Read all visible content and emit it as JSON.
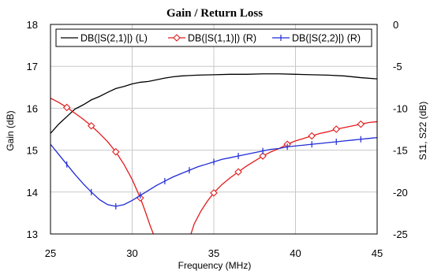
{
  "chart_data": {
    "type": "line",
    "title": "Gain / Return Loss",
    "xlabel": "Frequency (MHz)",
    "ylabel_left": "Gain (dB)",
    "ylabel_right": "S11, S22 (dB)",
    "xlim": [
      25,
      45
    ],
    "ylim_left": [
      13,
      18
    ],
    "ylim_right": [
      -25,
      0
    ],
    "x_ticks": [
      "25",
      "30",
      "35",
      "40",
      "45"
    ],
    "y_ticks_left": [
      "13",
      "14",
      "15",
      "16",
      "17",
      "18"
    ],
    "y_ticks_right": [
      "-25",
      "-20",
      "-15",
      "-10",
      "-5",
      "0"
    ],
    "grid": true,
    "legend_position": "top",
    "series": [
      {
        "name": "DB(|S(2,1)|) (L)",
        "axis": "left",
        "color": "#000000",
        "marker": "none",
        "x": [
          25,
          25.5,
          26,
          26.5,
          27,
          27.5,
          28,
          28.5,
          29,
          29.5,
          30,
          30.5,
          31,
          31.5,
          32,
          32.5,
          33,
          33.5,
          34,
          35,
          36,
          37,
          38,
          39,
          40,
          41,
          42,
          43,
          44,
          45
        ],
        "y": [
          15.4,
          15.62,
          15.8,
          15.98,
          16.08,
          16.2,
          16.28,
          16.38,
          16.47,
          16.52,
          16.58,
          16.62,
          16.64,
          16.68,
          16.72,
          16.75,
          16.77,
          16.78,
          16.79,
          16.8,
          16.81,
          16.81,
          16.82,
          16.82,
          16.81,
          16.8,
          16.79,
          16.77,
          16.73,
          16.7
        ]
      },
      {
        "name": "DB(|S(1,1)|) (R)",
        "axis": "right",
        "color": "#e31a1c",
        "marker": "diamond",
        "marker_x": [
          26,
          27.5,
          29,
          30.5,
          35,
          36.5,
          38,
          39.5,
          41,
          42.5,
          44
        ],
        "x": [
          25,
          25.5,
          26,
          26.5,
          27,
          27.5,
          28,
          28.5,
          29,
          29.5,
          30,
          30.5,
          30.8,
          31.1,
          31.3,
          33.6,
          33.8,
          34.2,
          34.6,
          35,
          35.5,
          36,
          36.5,
          37,
          37.5,
          38,
          38.5,
          39,
          39.5,
          40,
          40.5,
          41,
          41.5,
          42,
          42.5,
          43,
          43.5,
          44,
          44.5,
          45
        ],
        "y": [
          -8.8,
          -9.3,
          -9.9,
          -10.6,
          -11.3,
          -12.1,
          -13.0,
          -14.0,
          -15.2,
          -16.7,
          -18.5,
          -20.7,
          -22.3,
          -24.0,
          -25.0,
          -25.0,
          -23.8,
          -22.3,
          -21.1,
          -20.1,
          -19.1,
          -18.3,
          -17.6,
          -16.9,
          -16.3,
          -15.7,
          -15.2,
          -14.8,
          -14.3,
          -13.9,
          -13.6,
          -13.3,
          -13.0,
          -12.8,
          -12.5,
          -12.3,
          -12.1,
          -11.9,
          -11.7,
          -11.6
        ]
      },
      {
        "name": "DB(|S(2,2)|) (R)",
        "axis": "right",
        "color": "#1f2bd6",
        "marker": "plus",
        "marker_x": [
          26,
          27.5,
          29,
          30.5,
          32,
          33.5,
          35,
          36.5,
          38,
          39.5,
          41,
          42.5,
          44
        ],
        "x": [
          25,
          25.5,
          26,
          26.5,
          27,
          27.5,
          28,
          28.5,
          29,
          29.5,
          30,
          30.5,
          31,
          31.5,
          32,
          32.5,
          33,
          33.5,
          34,
          34.5,
          35,
          35.5,
          36,
          36.5,
          37,
          37.5,
          38,
          38.5,
          39,
          39.5,
          40,
          40.5,
          41,
          41.5,
          42,
          42.5,
          43,
          43.5,
          44,
          44.5,
          45
        ],
        "y": [
          -14.3,
          -15.5,
          -16.7,
          -17.9,
          -19.0,
          -20.0,
          -20.9,
          -21.5,
          -21.7,
          -21.5,
          -21.0,
          -20.4,
          -19.8,
          -19.2,
          -18.7,
          -18.2,
          -17.8,
          -17.4,
          -17.0,
          -16.7,
          -16.4,
          -16.1,
          -15.9,
          -15.7,
          -15.5,
          -15.3,
          -15.1,
          -14.9,
          -14.8,
          -14.6,
          -14.5,
          -14.4,
          -14.3,
          -14.2,
          -14.1,
          -14.0,
          -13.9,
          -13.8,
          -13.7,
          -13.6,
          -13.5
        ]
      }
    ]
  }
}
